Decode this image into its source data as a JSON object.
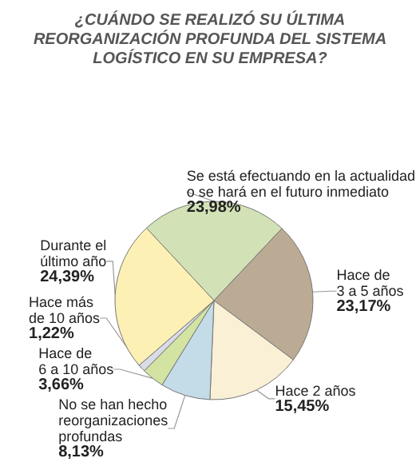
{
  "chart_data": {
    "type": "pie",
    "title": "¿CUÁNDO SE REALIZÓ SU ÚLTIMA\nREORGANIZACIÓN PROFUNDA DEL SISTEMA\nLOGÍSTICO EN SU EMPRESA?",
    "categories": [
      "Se está efectuando en la actualidad\no se hará en el futuro inmediato",
      "Hace de\n3 a 5 años",
      "Hace 2 años",
      "No se han hecho\nreorganizaciones\nprofundas",
      "Hace de\n6 a 10 años",
      "Hace más\nde 10 años",
      "Durante el\núltimo año"
    ],
    "values": [
      23.98,
      23.17,
      15.45,
      8.13,
      3.66,
      1.22,
      24.39
    ],
    "colors": [
      "#d3e2b6",
      "#bbab94",
      "#faf0d6",
      "#c4dbe8",
      "#d2e3a2",
      "#d9dbe6",
      "#fcf0b4"
    ],
    "value_labels": [
      "23,98%",
      "23,17%",
      "15,45%",
      "8,13%",
      "3,66%",
      "1,22%",
      "24,39%"
    ],
    "legend": false
  }
}
